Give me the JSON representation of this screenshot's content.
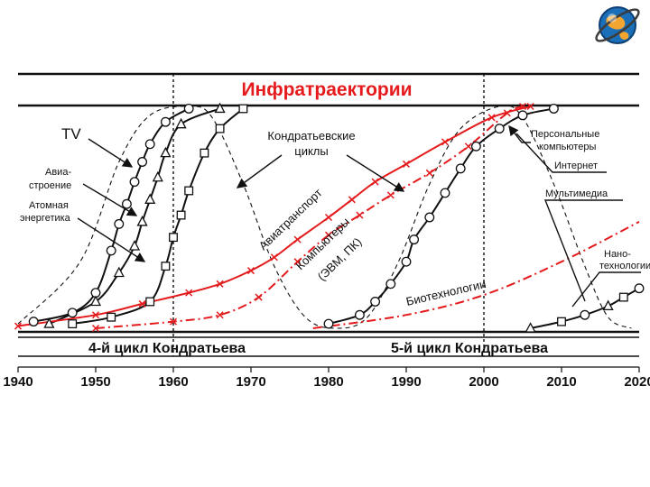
{
  "title": "Инфратраектории",
  "logo_icon": "globe-icon",
  "colors": {
    "title": "#e41a1c",
    "red": "#e41a1c",
    "black": "#111111",
    "bg": "#ffffff"
  },
  "cycles": {
    "left": "4-й цикл Кондратьева",
    "right": "5-й цикл Кондратьева"
  },
  "chart_data": {
    "type": "line",
    "title": "Инфратраектории",
    "xlim": [
      1940,
      2020
    ],
    "ylim": [
      0,
      1
    ],
    "x_ticks": [
      1940,
      1950,
      1960,
      1970,
      1980,
      1990,
      2000,
      2010,
      2020
    ],
    "cycle_boundaries": [
      1960,
      2000
    ],
    "grid": false,
    "series": [
      {
        "name": "TV",
        "color": "#111111",
        "style": "solid",
        "marker": "circle",
        "points": [
          [
            1942,
            0.03
          ],
          [
            1947,
            0.07
          ],
          [
            1950,
            0.16
          ],
          [
            1952,
            0.35
          ],
          [
            1953,
            0.47
          ],
          [
            1954,
            0.56
          ],
          [
            1955,
            0.66
          ],
          [
            1956,
            0.75
          ],
          [
            1957,
            0.83
          ],
          [
            1959,
            0.93
          ],
          [
            1962,
            0.99
          ]
        ]
      },
      {
        "name": "Авиастроение",
        "color": "#111111",
        "style": "solid",
        "marker": "triangle",
        "points": [
          [
            1944,
            0.02
          ],
          [
            1950,
            0.12
          ],
          [
            1953,
            0.25
          ],
          [
            1955,
            0.37
          ],
          [
            1956,
            0.48
          ],
          [
            1957,
            0.58
          ],
          [
            1958,
            0.68
          ],
          [
            1959,
            0.79
          ],
          [
            1961,
            0.92
          ],
          [
            1966,
            0.99
          ]
        ]
      },
      {
        "name": "Атомная энергетика",
        "color": "#111111",
        "style": "solid",
        "marker": "square",
        "points": [
          [
            1947,
            0.02
          ],
          [
            1952,
            0.05
          ],
          [
            1957,
            0.12
          ],
          [
            1959,
            0.28
          ],
          [
            1960,
            0.41
          ],
          [
            1961,
            0.51
          ],
          [
            1962,
            0.62
          ],
          [
            1964,
            0.79
          ],
          [
            1966,
            0.9
          ],
          [
            1969,
            0.99
          ]
        ]
      },
      {
        "name": "Кондратьевские циклы",
        "color": "#111111",
        "style": "dashed",
        "marker": "none",
        "points": [
          [
            1940,
            0.02
          ],
          [
            1948,
            0.3
          ],
          [
            1953,
            0.75
          ],
          [
            1957,
            0.96
          ],
          [
            1962,
            1.0
          ],
          [
            1965,
            0.95
          ],
          [
            1969,
            0.65
          ],
          [
            1973,
            0.28
          ],
          [
            1977,
            0.05
          ],
          [
            1981,
            0.0
          ],
          [
            1985,
            0.05
          ],
          [
            1989,
            0.3
          ],
          [
            1993,
            0.65
          ],
          [
            1997,
            0.9
          ],
          [
            2002,
            1.0
          ],
          [
            2005,
            0.95
          ],
          [
            2009,
            0.65
          ],
          [
            2013,
            0.28
          ],
          [
            2016,
            0.05
          ],
          [
            2019,
            0.0
          ]
        ]
      },
      {
        "name": "Авиатранспорт",
        "color": "#e41a1c",
        "style": "solid",
        "marker": "cross",
        "points": [
          [
            1940,
            0.01
          ],
          [
            1950,
            0.06
          ],
          [
            1956,
            0.11
          ],
          [
            1962,
            0.16
          ],
          [
            1966,
            0.2
          ],
          [
            1970,
            0.26
          ],
          [
            1973,
            0.32
          ],
          [
            1976,
            0.4
          ],
          [
            1980,
            0.5
          ],
          [
            1983,
            0.58
          ],
          [
            1986,
            0.66
          ],
          [
            1990,
            0.74
          ],
          [
            1995,
            0.84
          ],
          [
            2001,
            0.95
          ],
          [
            2006,
            1.0
          ]
        ]
      },
      {
        "name": "Компьютеры (ЭВМ, ПК)",
        "color": "#e41a1c",
        "style": "dashdot",
        "marker": "cross",
        "points": [
          [
            1950,
            0.0
          ],
          [
            1960,
            0.03
          ],
          [
            1966,
            0.06
          ],
          [
            1971,
            0.14
          ],
          [
            1976,
            0.3
          ],
          [
            1980,
            0.42
          ],
          [
            1984,
            0.51
          ],
          [
            1988,
            0.6
          ],
          [
            1993,
            0.7
          ],
          [
            1998,
            0.82
          ],
          [
            2003,
            0.97
          ],
          [
            2005,
            1.0
          ]
        ]
      },
      {
        "name": "Персональные компьютеры",
        "color": "#111111",
        "style": "solid",
        "marker": "circle",
        "points": [
          [
            1980,
            0.02
          ],
          [
            1984,
            0.06
          ],
          [
            1986,
            0.12
          ],
          [
            1988,
            0.2
          ],
          [
            1990,
            0.3
          ],
          [
            1991,
            0.4
          ],
          [
            1993,
            0.5
          ],
          [
            1995,
            0.61
          ],
          [
            1997,
            0.72
          ],
          [
            1999,
            0.82
          ],
          [
            2002,
            0.9
          ],
          [
            2005,
            0.96
          ],
          [
            2009,
            0.99
          ]
        ]
      },
      {
        "name": "Биотехнологии",
        "color": "#e41a1c",
        "style": "dashdot",
        "marker": "none",
        "points": [
          [
            1978,
            0.0
          ],
          [
            1990,
            0.06
          ],
          [
            2000,
            0.15
          ],
          [
            2010,
            0.3
          ],
          [
            2020,
            0.48
          ]
        ]
      },
      {
        "name": "Нанотехнологии",
        "color": "#111111",
        "style": "solid",
        "marker": "mixed",
        "points": [
          [
            2006,
            0.0
          ],
          [
            2010,
            0.03
          ],
          [
            2013,
            0.06
          ],
          [
            2016,
            0.1
          ],
          [
            2018,
            0.14
          ],
          [
            2020,
            0.18
          ]
        ]
      }
    ],
    "annotations": [
      {
        "text": "TV"
      },
      {
        "text": "Авиа-"
      },
      {
        "text": "строение"
      },
      {
        "text": "Атомная"
      },
      {
        "text": "энергетика"
      },
      {
        "text": "Кондратьевские"
      },
      {
        "text": "циклы"
      },
      {
        "text": "Авиатранспорт"
      },
      {
        "text": "Компьютеры"
      },
      {
        "text": "(ЭВМ, ПК)"
      },
      {
        "text": "Биотехнологии"
      },
      {
        "text": "Персональные"
      },
      {
        "text": "компьютеры"
      },
      {
        "text": "Интернет"
      },
      {
        "text": "Мультимедиа"
      },
      {
        "text": "Нано-"
      },
      {
        "text": "технологии"
      }
    ]
  }
}
